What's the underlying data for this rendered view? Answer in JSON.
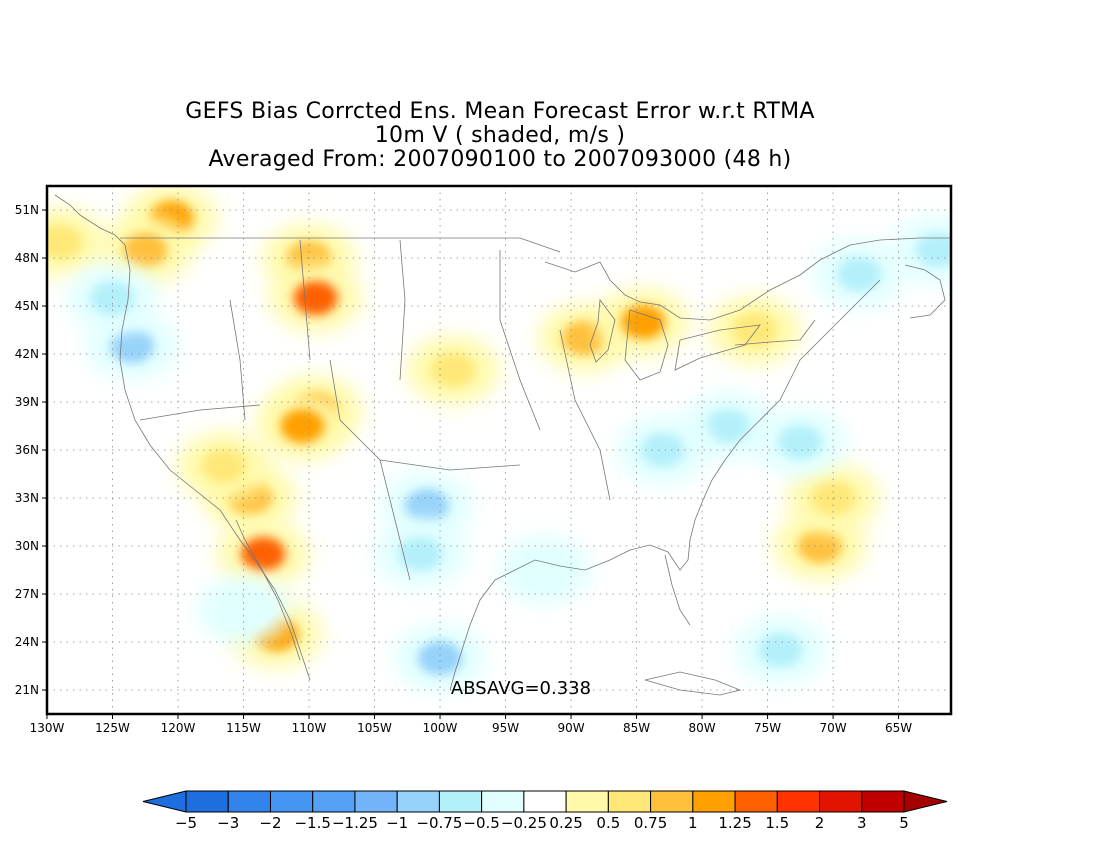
{
  "title": {
    "line1": "GEFS Bias Corrcted Ens. Mean Forecast Error w.r.t RTMA",
    "line2": "10m V ( shaded, m/s )",
    "line3": "Averaged From: 2007090100 to 2007093000 (48 h)"
  },
  "stat_label": "ABSAVG=0.338",
  "map": {
    "lon_range": [
      -130,
      -61
    ],
    "lat_range": [
      19.5,
      52.5
    ],
    "lon_ticks": [
      "130W",
      "125W",
      "120W",
      "115W",
      "110W",
      "105W",
      "100W",
      "95W",
      "90W",
      "85W",
      "80W",
      "75W",
      "70W",
      "65W"
    ],
    "lat_ticks": [
      "51N",
      "48N",
      "45N",
      "42N",
      "39N",
      "36N",
      "33N",
      "30N",
      "27N",
      "24N",
      "21N"
    ],
    "grid": "dotted",
    "anomalies": [
      {
        "lon": -120.5,
        "lat": 50.5,
        "value": 1.0
      },
      {
        "lon": -122.5,
        "lat": 48.5,
        "value": 0.75
      },
      {
        "lon": -129,
        "lat": 49,
        "value": 0.5
      },
      {
        "lon": -110,
        "lat": 48,
        "value": 0.75
      },
      {
        "lon": -109.5,
        "lat": 45.5,
        "value": 1.25
      },
      {
        "lon": -109.5,
        "lat": 38.5,
        "value": 1.0
      },
      {
        "lon": -110.5,
        "lat": 37.5,
        "value": 1.0
      },
      {
        "lon": -114.5,
        "lat": 33,
        "value": 0.75
      },
      {
        "lon": -113.5,
        "lat": 29.5,
        "value": 1.25
      },
      {
        "lon": -112.5,
        "lat": 24.5,
        "value": 1.0
      },
      {
        "lon": -116.5,
        "lat": 35,
        "value": 0.5
      },
      {
        "lon": -99,
        "lat": 41,
        "value": 0.5
      },
      {
        "lon": -89,
        "lat": 43,
        "value": 0.75
      },
      {
        "lon": -84.5,
        "lat": 44,
        "value": 1.0
      },
      {
        "lon": -76,
        "lat": 43.5,
        "value": 0.5
      },
      {
        "lon": -71,
        "lat": 30,
        "value": 0.75
      },
      {
        "lon": -70,
        "lat": 33,
        "value": 0.5
      },
      {
        "lon": -123.5,
        "lat": 42.5,
        "value": -1.0
      },
      {
        "lon": -125,
        "lat": 45.5,
        "value": -0.75
      },
      {
        "lon": -101,
        "lat": 32.5,
        "value": -1.0
      },
      {
        "lon": -101.5,
        "lat": 29.5,
        "value": -0.75
      },
      {
        "lon": -100,
        "lat": 23,
        "value": -1.0
      },
      {
        "lon": -78,
        "lat": 37.5,
        "value": -0.75
      },
      {
        "lon": -72.5,
        "lat": 36.5,
        "value": -0.75
      },
      {
        "lon": -74,
        "lat": 23.5,
        "value": -0.75
      },
      {
        "lon": -68,
        "lat": 47,
        "value": -0.75
      },
      {
        "lon": -62,
        "lat": 48.5,
        "value": -0.75
      },
      {
        "lon": -83,
        "lat": 36,
        "value": -0.75
      },
      {
        "lon": -92,
        "lat": 28.5,
        "value": -0.5
      },
      {
        "lon": -115,
        "lat": 26,
        "value": -0.5
      }
    ]
  },
  "colorbar": {
    "labels": [
      "−5",
      "−3",
      "−2",
      "−1.5",
      "−1.25",
      "−1",
      "−0.75",
      "−0.5",
      "−0.25",
      "0.25",
      "0.5",
      "0.75",
      "1",
      "1.25",
      "1.5",
      "2",
      "3",
      "5"
    ],
    "colors": [
      "#1e6ee0",
      "#1e6ee0",
      "#3283eb",
      "#4496f2",
      "#53a2f6",
      "#73b4f9",
      "#96d2fa",
      "#b4f0fa",
      "#e1ffff",
      "#ffffff",
      "#fffaaa",
      "#ffe878",
      "#ffc03c",
      "#ffa000",
      "#ff6000",
      "#ff3200",
      "#e11400",
      "#c00000",
      "#a50000"
    ]
  }
}
